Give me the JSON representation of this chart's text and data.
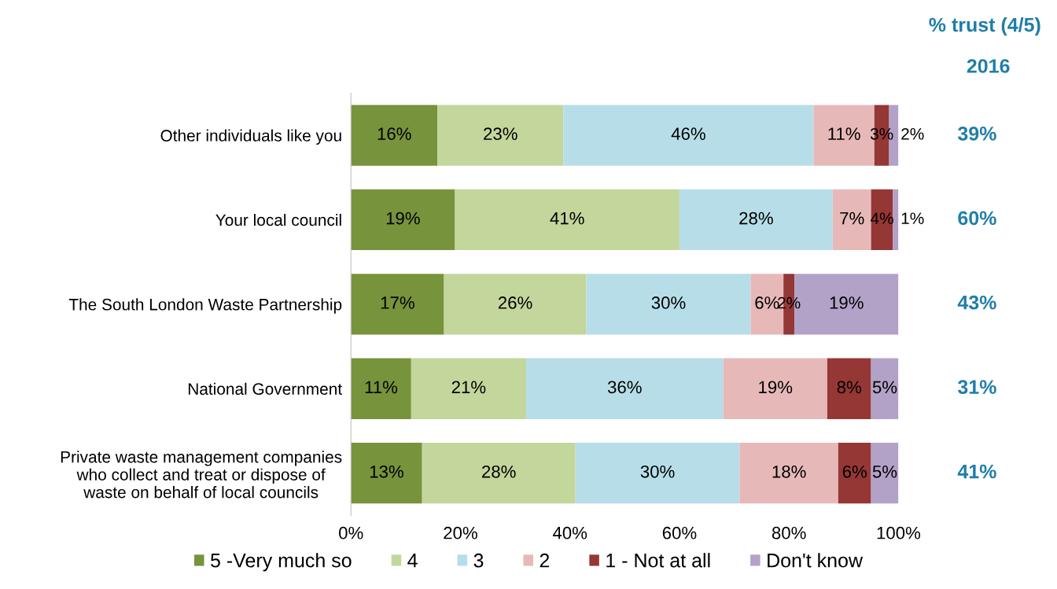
{
  "chart_data": {
    "type": "bar",
    "orientation": "horizontal",
    "stacked": true,
    "categories": [
      "Other individuals like you",
      "Your local council",
      "The South London Waste Partnership",
      "National Government",
      "Private waste management companies\nwho collect and treat or dispose of\nwaste on behalf of local councils"
    ],
    "series": [
      {
        "name": "5 -Very much so",
        "color": "#77933c",
        "values": [
          15.8,
          19,
          17,
          11,
          13
        ],
        "value_labels": [
          "16%",
          "19%",
          "17%",
          "11%",
          "13%"
        ]
      },
      {
        "name": "4",
        "color": "#c3d69b",
        "values": [
          23,
          41,
          26,
          21,
          28
        ],
        "value_labels": [
          "23%",
          "41%",
          "26%",
          "21%",
          "28%"
        ]
      },
      {
        "name": "3",
        "color": "#b7dee8",
        "values": [
          45.7,
          28,
          30,
          36,
          30
        ],
        "value_labels": [
          "46%",
          "28%",
          "30%",
          "36%",
          "30%"
        ]
      },
      {
        "name": "2",
        "color": "#e6b9b8",
        "values": [
          11.1,
          7,
          6,
          19,
          18
        ],
        "value_labels": [
          "11%",
          "7%",
          "6%",
          "19%",
          "18%"
        ]
      },
      {
        "name": "1 - Not at all",
        "color": "#953735",
        "values": [
          2.7,
          4,
          2,
          8,
          6
        ],
        "value_labels": [
          "3%",
          "4%",
          "2%",
          "8%",
          "6%"
        ]
      },
      {
        "name": "Don't know",
        "color": "#b3a2c7",
        "values": [
          1.7,
          1,
          19,
          5,
          5
        ],
        "value_labels": [
          "2%",
          "1%",
          "19%",
          "5%",
          "5%"
        ]
      }
    ],
    "xlim": [
      0,
      100
    ],
    "xticks": [
      {
        "value": 0,
        "label": "0%"
      },
      {
        "value": 20,
        "label": "20%"
      },
      {
        "value": 40,
        "label": "40%"
      },
      {
        "value": 60,
        "label": "60%"
      },
      {
        "value": 80,
        "label": "80%"
      },
      {
        "value": 100,
        "label": "100%"
      }
    ],
    "grid": false,
    "legend": "bottom",
    "annotations": [
      "% trust (4/5)",
      "2016",
      "39%",
      "60%",
      "43%",
      "31%",
      "41%"
    ]
  }
}
